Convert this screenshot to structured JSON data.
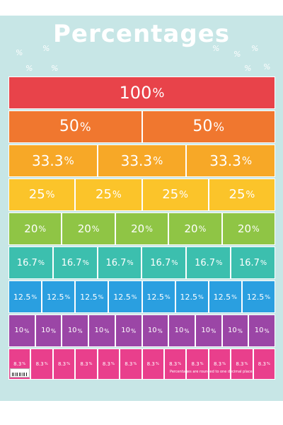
{
  "title": "Percentages",
  "decor_symbol": "%",
  "footnote": "Percentages are rounded to one decimal place",
  "rows": [
    {
      "label": "100",
      "count": 1,
      "color": "#e8434a",
      "text_color": "#ffffff"
    },
    {
      "label": "50",
      "count": 2,
      "color": "#f0772f",
      "text_color": "#ffffff"
    },
    {
      "label": "33.3",
      "count": 3,
      "color": "#f7a827",
      "text_color": "#ffffff"
    },
    {
      "label": "25",
      "count": 4,
      "color": "#fbc42a",
      "text_color": "#ffffff"
    },
    {
      "label": "20",
      "count": 5,
      "color": "#8fc545",
      "text_color": "#ffffff"
    },
    {
      "label": "16.7",
      "count": 6,
      "color": "#3cbfae",
      "text_color": "#ffffff"
    },
    {
      "label": "12.5",
      "count": 8,
      "color": "#2a9fe0",
      "text_color": "#ffffff"
    },
    {
      "label": "10",
      "count": 10,
      "color": "#9b46a6",
      "text_color": "#ffffff"
    },
    {
      "label": "8.3",
      "count": 12,
      "color": "#e93f8c",
      "text_color": "#ffffff"
    }
  ],
  "colors": {
    "background": "#c7e6e6",
    "border": "#ffffff"
  }
}
